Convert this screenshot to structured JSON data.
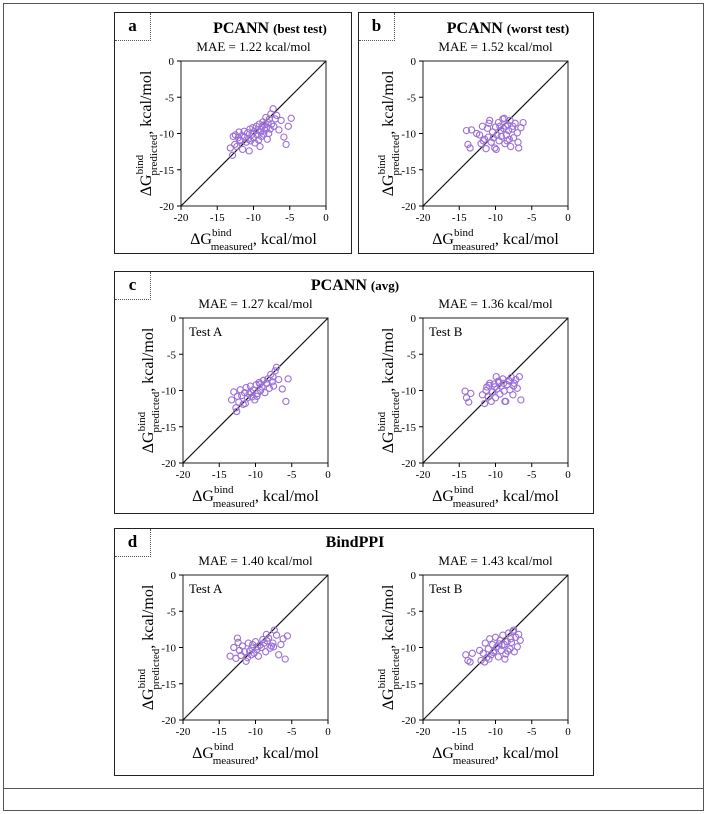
{
  "panels": [
    {
      "tag": "a",
      "title_main": "PCANN",
      "title_paren": "(best test)"
    },
    {
      "tag": "b",
      "title_main": "PCANN",
      "title_paren": "(worst test)"
    },
    {
      "tag": "c",
      "title_main": "PCANN",
      "title_paren": "(avg)"
    },
    {
      "tag": "d",
      "title_main": "BindPPI",
      "title_paren": ""
    }
  ],
  "colors": {
    "marker": "#9b6fd6",
    "frame": "#222222",
    "diagonal": "#111111"
  },
  "chart_data": [
    {
      "id": "a",
      "type": "scatter",
      "title": "MAE = 1.22 kcal/mol",
      "label": "",
      "xlabel": {
        "base": "ΔG",
        "sup": "bind",
        "sub": "measured",
        "unit": ", kcal/mol"
      },
      "ylabel": {
        "base": "ΔG",
        "sup": "bind",
        "sub": "predicted",
        "unit": ", kcal/mol"
      },
      "xlim": [
        -20,
        0
      ],
      "ylim": [
        -20,
        0
      ],
      "xticks": [
        "-20",
        "-15",
        "-10",
        "-5",
        "0"
      ],
      "yticks": [
        "-20",
        "-15",
        "-10",
        "-5",
        "0"
      ],
      "x": [
        -13.2,
        -12.8,
        -12.6,
        -12.5,
        -12.3,
        -12.1,
        -12.0,
        -11.8,
        -11.6,
        -11.5,
        -11.3,
        -11.2,
        -11.0,
        -10.8,
        -10.7,
        -10.5,
        -10.4,
        -10.2,
        -10.1,
        -10.0,
        -9.9,
        -9.8,
        -9.6,
        -9.5,
        -9.4,
        -9.3,
        -9.2,
        -9.0,
        -8.9,
        -8.8,
        -8.7,
        -8.6,
        -8.5,
        -8.4,
        -8.3,
        -8.2,
        -8.0,
        -7.9,
        -7.8,
        -7.7,
        -7.6,
        -7.5,
        -7.3,
        -7.2,
        -7.0,
        -6.8,
        -6.5,
        -6.2,
        -5.8,
        -5.5,
        -5.2,
        -4.8,
        -10.6,
        -11.9,
        -9.1,
        -8.1,
        -12.9
      ],
      "y": [
        -12.0,
        -10.4,
        -11.5,
        -10.2,
        -11.8,
        -10.6,
        -9.8,
        -11.0,
        -10.3,
        -12.2,
        -9.7,
        -10.5,
        -11.2,
        -9.9,
        -10.8,
        -9.4,
        -11.0,
        -10.1,
        -9.2,
        -10.6,
        -9.7,
        -11.3,
        -9.0,
        -10.2,
        -9.5,
        -10.9,
        -8.7,
        -9.8,
        -10.4,
        -9.0,
        -8.4,
        -10.1,
        -8.8,
        -9.5,
        -7.8,
        -9.2,
        -8.5,
        -10.0,
        -8.0,
        -9.4,
        -7.3,
        -8.7,
        -6.6,
        -9.0,
        -8.0,
        -7.5,
        -9.5,
        -8.2,
        -10.5,
        -11.5,
        -9.0,
        -7.9,
        -12.4,
        -10.9,
        -11.8,
        -10.8,
        -13.0
      ]
    },
    {
      "id": "b",
      "type": "scatter",
      "title": "MAE = 1.52 kcal/mol",
      "label": "",
      "xlabel": {
        "base": "ΔG",
        "sup": "bind",
        "sub": "measured",
        "unit": ", kcal/mol"
      },
      "ylabel": {
        "base": "ΔG",
        "sup": "bind",
        "sub": "predicted",
        "unit": ", kcal/mol"
      },
      "xlim": [
        -20,
        0
      ],
      "ylim": [
        -20,
        0
      ],
      "xticks": [
        "-20",
        "-15",
        "-10",
        "-5",
        "0"
      ],
      "yticks": [
        "-20",
        "-15",
        "-10",
        "-5",
        "0"
      ],
      "x": [
        -14.0,
        -13.8,
        -13.5,
        -13.3,
        -12.2,
        -12.0,
        -11.8,
        -11.5,
        -11.3,
        -11.1,
        -11.0,
        -10.8,
        -10.6,
        -10.4,
        -10.3,
        -10.1,
        -10.0,
        -9.8,
        -9.6,
        -9.5,
        -9.3,
        -9.2,
        -9.0,
        -8.9,
        -8.7,
        -8.6,
        -8.5,
        -8.3,
        -8.2,
        -8.0,
        -7.9,
        -7.7,
        -7.5,
        -7.3,
        -7.0,
        -6.8,
        -6.5,
        -6.2,
        -11.7,
        -10.9,
        -9.9,
        -8.8,
        -8.1,
        -7.6,
        -6.9,
        -12.6,
        -9.4,
        -8.4
      ],
      "y": [
        -9.6,
        -11.5,
        -12.0,
        -9.5,
        -10.2,
        -11.4,
        -9.0,
        -10.8,
        -12.1,
        -9.3,
        -10.5,
        -8.2,
        -11.2,
        -9.8,
        -10.6,
        -12.0,
        -9.1,
        -10.2,
        -8.5,
        -11.0,
        -9.6,
        -10.4,
        -8.0,
        -9.3,
        -11.4,
        -9.0,
        -10.2,
        -8.8,
        -9.6,
        -8.2,
        -11.8,
        -9.4,
        -10.6,
        -8.6,
        -9.9,
        -12.0,
        -9.2,
        -8.5,
        -11.0,
        -8.6,
        -12.2,
        -7.9,
        -10.8,
        -9.0,
        -11.2,
        -10.0,
        -9.0,
        -11.0
      ]
    },
    {
      "id": "c1",
      "type": "scatter",
      "title": "MAE = 1.27 kcal/mol",
      "label": "Test A",
      "xlabel": {
        "base": "ΔG",
        "sup": "bind",
        "sub": "measured",
        "unit": ", kcal/mol"
      },
      "ylabel": {
        "base": "ΔG",
        "sup": "bind",
        "sub": "predicted",
        "unit": ", kcal/mol"
      },
      "xlim": [
        -20,
        0
      ],
      "ylim": [
        -20,
        0
      ],
      "xticks": [
        "-20",
        "-15",
        "-10",
        "-5",
        "0"
      ],
      "yticks": [
        "-20",
        "-15",
        "-10",
        "-5",
        "0"
      ],
      "x": [
        -13.3,
        -13.0,
        -12.7,
        -12.5,
        -12.3,
        -12.1,
        -11.9,
        -11.7,
        -11.5,
        -11.3,
        -11.1,
        -10.9,
        -10.7,
        -10.5,
        -10.3,
        -10.1,
        -9.9,
        -9.7,
        -9.5,
        -9.3,
        -9.1,
        -8.9,
        -8.7,
        -8.5,
        -8.3,
        -8.1,
        -7.9,
        -7.7,
        -7.5,
        -7.3,
        -7.1,
        -6.8,
        -6.3,
        -5.8,
        -5.5,
        -10.6,
        -11.4,
        -9.4,
        -8.4,
        -12.6,
        -9.8,
        -7.6
      ],
      "y": [
        -11.3,
        -10.2,
        -12.4,
        -10.8,
        -11.6,
        -9.9,
        -10.7,
        -11.9,
        -10.3,
        -9.6,
        -11.0,
        -10.5,
        -9.4,
        -10.9,
        -9.9,
        -11.3,
        -9.2,
        -10.4,
        -8.9,
        -10.0,
        -9.5,
        -8.6,
        -10.3,
        -9.0,
        -8.4,
        -9.7,
        -7.8,
        -8.8,
        -9.4,
        -7.3,
        -6.8,
        -8.5,
        -9.8,
        -11.5,
        -8.4,
        -10.3,
        -11.8,
        -9.1,
        -9.0,
        -12.9,
        -10.8,
        -8.1
      ]
    },
    {
      "id": "c2",
      "type": "scatter",
      "title": "MAE = 1.36 kcal/mol",
      "label": "Test B",
      "xlabel": {
        "base": "ΔG",
        "sup": "bind",
        "sub": "measured",
        "unit": ", kcal/mol"
      },
      "ylabel": {
        "base": "ΔG",
        "sup": "bind",
        "sub": "predicted",
        "unit": ", kcal/mol"
      },
      "xlim": [
        -20,
        0
      ],
      "ylim": [
        -20,
        0
      ],
      "xticks": [
        "-20",
        "-15",
        "-10",
        "-5",
        "0"
      ],
      "yticks": [
        "-20",
        "-15",
        "-10",
        "-5",
        "0"
      ],
      "x": [
        -14.2,
        -14.0,
        -13.7,
        -13.4,
        -11.8,
        -11.5,
        -11.2,
        -11.0,
        -10.8,
        -10.6,
        -10.4,
        -10.2,
        -10.0,
        -9.8,
        -9.6,
        -9.4,
        -9.2,
        -9.0,
        -8.8,
        -8.6,
        -8.4,
        -8.2,
        -8.0,
        -7.8,
        -7.6,
        -7.4,
        -7.2,
        -7.0,
        -6.7,
        -6.5,
        -11.3,
        -10.1,
        -9.5,
        -8.7,
        -8.1,
        -7.5,
        -10.9,
        -9.9,
        -8.9
      ],
      "y": [
        -10.1,
        -11.0,
        -11.6,
        -10.4,
        -10.6,
        -11.8,
        -9.5,
        -10.9,
        -9.0,
        -11.5,
        -10.2,
        -9.1,
        -11.0,
        -9.8,
        -8.7,
        -10.5,
        -9.4,
        -8.4,
        -10.1,
        -11.5,
        -9.2,
        -8.6,
        -9.9,
        -8.2,
        -10.6,
        -9.0,
        -8.5,
        -9.7,
        -8.1,
        -11.3,
        -10.0,
        -9.5,
        -8.9,
        -11.5,
        -8.7,
        -9.4,
        -9.3,
        -8.1,
        -9.0
      ]
    },
    {
      "id": "d1",
      "type": "scatter",
      "title": "MAE = 1.40 kcal/mol",
      "label": "Test A",
      "xlabel": {
        "base": "ΔG",
        "sup": "bind",
        "sub": "measured",
        "unit": ", kcal/mol"
      },
      "ylabel": {
        "base": "ΔG",
        "sup": "bind",
        "sub": "predicted",
        "unit": ", kcal/mol"
      },
      "xlim": [
        -20,
        0
      ],
      "ylim": [
        -20,
        0
      ],
      "xticks": [
        "-20",
        "-15",
        "-10",
        "-5",
        "0"
      ],
      "yticks": [
        "-20",
        "-15",
        "-10",
        "-5",
        "0"
      ],
      "x": [
        -13.5,
        -13.0,
        -12.7,
        -12.5,
        -12.2,
        -12.0,
        -11.8,
        -11.5,
        -11.3,
        -11.0,
        -10.8,
        -10.6,
        -10.4,
        -10.2,
        -10.0,
        -9.8,
        -9.6,
        -9.4,
        -9.2,
        -9.0,
        -8.8,
        -8.6,
        -8.4,
        -8.2,
        -8.0,
        -7.8,
        -7.6,
        -7.4,
        -7.1,
        -6.8,
        -6.5,
        -6.2,
        -5.9,
        -5.6,
        -12.4,
        -11.1,
        -9.7,
        -8.5,
        -7.5,
        -10.5
      ],
      "y": [
        -11.2,
        -10.0,
        -11.5,
        -8.7,
        -10.4,
        -11.1,
        -9.8,
        -10.6,
        -11.9,
        -9.4,
        -10.5,
        -11.0,
        -9.6,
        -10.8,
        -9.2,
        -10.3,
        -11.2,
        -9.7,
        -10.0,
        -8.9,
        -9.4,
        -10.6,
        -9.1,
        -8.7,
        -10.1,
        -9.8,
        -9.4,
        -7.6,
        -8.3,
        -11.0,
        -9.6,
        -8.8,
        -11.6,
        -8.4,
        -9.3,
        -11.4,
        -9.9,
        -8.2,
        -9.9,
        -10.1
      ]
    },
    {
      "id": "d2",
      "type": "scatter",
      "title": "MAE = 1.43 kcal/mol",
      "label": "Test B",
      "xlabel": {
        "base": "ΔG",
        "sup": "bind",
        "sub": "measured",
        "unit": ", kcal/mol"
      },
      "ylabel": {
        "base": "ΔG",
        "sup": "bind",
        "sub": "predicted",
        "unit": ", kcal/mol"
      },
      "xlim": [
        -20,
        0
      ],
      "ylim": [
        -20,
        0
      ],
      "xticks": [
        "-20",
        "-15",
        "-10",
        "-5",
        "0"
      ],
      "yticks": [
        "-20",
        "-15",
        "-10",
        "-5",
        "0"
      ],
      "x": [
        -14.1,
        -13.8,
        -13.5,
        -13.2,
        -12.0,
        -11.7,
        -11.4,
        -11.2,
        -11.0,
        -10.8,
        -10.6,
        -10.4,
        -10.2,
        -10.0,
        -9.8,
        -9.6,
        -9.4,
        -9.2,
        -9.0,
        -8.8,
        -8.6,
        -8.4,
        -8.2,
        -8.0,
        -7.8,
        -7.6,
        -7.4,
        -7.2,
        -7.0,
        -6.8,
        -6.6,
        -11.5,
        -10.3,
        -9.5,
        -8.7,
        -7.9,
        -10.9,
        -9.1,
        -8.3,
        -7.5,
        -12.2
      ],
      "y": [
        -11.0,
        -11.8,
        -12.0,
        -10.8,
        -11.8,
        -10.8,
        -9.4,
        -11.4,
        -10.2,
        -8.8,
        -11.0,
        -9.6,
        -10.5,
        -8.6,
        -9.9,
        -11.3,
        -9.0,
        -10.4,
        -8.3,
        -9.6,
        -10.9,
        -9.2,
        -8.0,
        -10.2,
        -9.3,
        -7.8,
        -10.6,
        -8.6,
        -9.9,
        -8.2,
        -9.0,
        -12.0,
        -10.7,
        -9.5,
        -11.6,
        -8.8,
        -11.6,
        -9.7,
        -10.5,
        -7.6,
        -10.4
      ]
    }
  ]
}
